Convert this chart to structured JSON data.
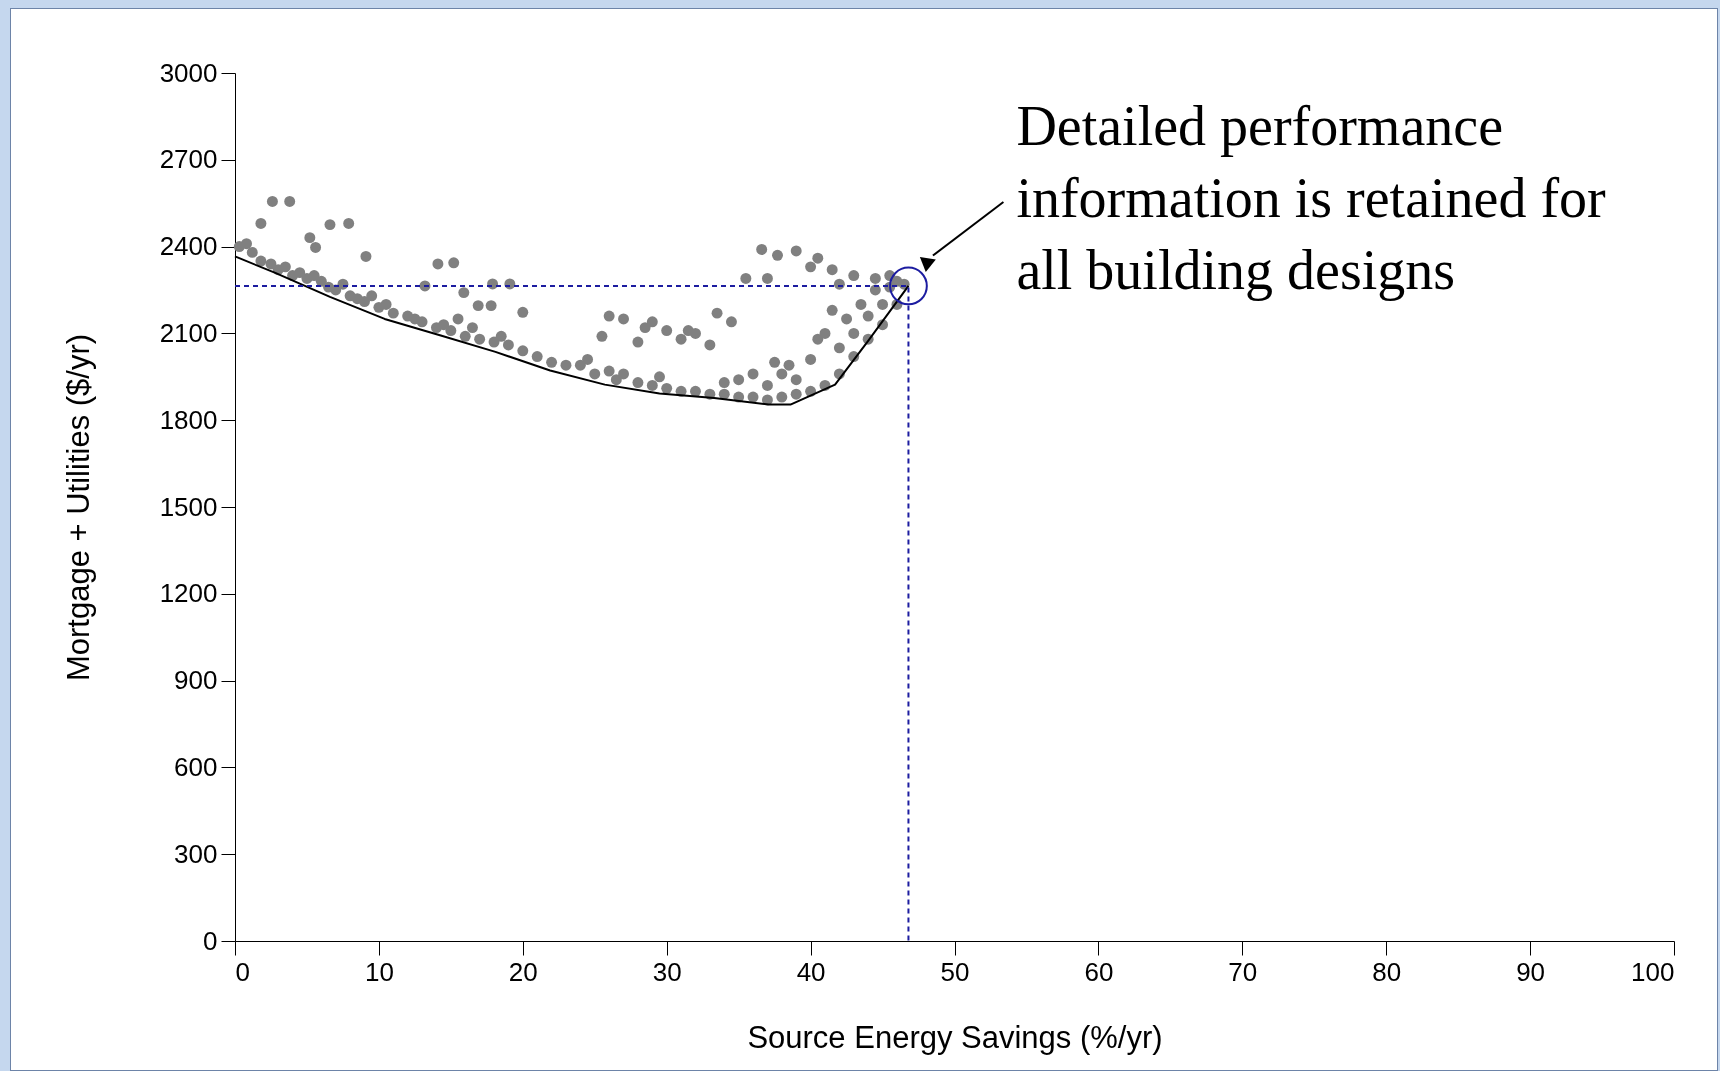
{
  "chart_data": {
    "type": "scatter",
    "xlabel": "Source Energy Savings (%/yr)",
    "ylabel": "Mortgage + Utilities ($/yr)",
    "xlim": [
      0,
      100
    ],
    "xticks": [
      0,
      10,
      20,
      30,
      40,
      50,
      60,
      70,
      80,
      90,
      100
    ],
    "ylim": [
      0,
      3000
    ],
    "yticks": [
      0,
      300,
      600,
      900,
      1200,
      1500,
      1800,
      2100,
      2400,
      2700,
      3000
    ],
    "grid": false,
    "annotations": [
      {
        "text": "Detailed performance\ninformation is retained for\nall building designs",
        "x": 46.8,
        "y": 2264
      }
    ],
    "series": [
      {
        "color": "#808080",
        "marker": "circle",
        "x": [
          0.3,
          0.8,
          1.2,
          1.8,
          2.5,
          3,
          3.5,
          4,
          4.5,
          5,
          5.5,
          6,
          6.5,
          7,
          7.5,
          8,
          8.5,
          9,
          9.5,
          10,
          10.5,
          11,
          12,
          12.5,
          13,
          14,
          14.5,
          15,
          15.5,
          16,
          16.5,
          17,
          18,
          18.5,
          19,
          20,
          21,
          22,
          23,
          24,
          24.5,
          25,
          26,
          26.5,
          27,
          28,
          29,
          29.5,
          30,
          31,
          32,
          33,
          34,
          34,
          35,
          35,
          36,
          36,
          37,
          37,
          37.5,
          38,
          38,
          38.5,
          39,
          39,
          40,
          40,
          40.5,
          41,
          41,
          41.5,
          42,
          42,
          42.5,
          43,
          43,
          43.5,
          44,
          44,
          44.5,
          45,
          45,
          45.5,
          46,
          46,
          46.5,
          25.5,
          26,
          27,
          28,
          28.5,
          29,
          30,
          31,
          31.5,
          32,
          33,
          33.5,
          34.5,
          35.5,
          36.6,
          37,
          37.7,
          39,
          40,
          40.5,
          41.5,
          42,
          43,
          44.5,
          45.5,
          2.6,
          3.8,
          1.8,
          5.2,
          5.6,
          6.6,
          7.9,
          9.1,
          14.1,
          15.2,
          17.9,
          19.1,
          20,
          13.2,
          15.9,
          16.9,
          17.8
        ],
        "values": [
          2400,
          2410,
          2380,
          2350,
          2340,
          2320,
          2330,
          2300,
          2310,
          2290,
          2300,
          2280,
          2260,
          2250,
          2270,
          2230,
          2220,
          2210,
          2230,
          2190,
          2200,
          2170,
          2160,
          2150,
          2140,
          2120,
          2130,
          2110,
          2150,
          2090,
          2120,
          2080,
          2070,
          2090,
          2060,
          2040,
          2020,
          2000,
          1990,
          1990,
          2010,
          1960,
          1970,
          1940,
          1960,
          1930,
          1920,
          1950,
          1910,
          1900,
          1900,
          1890,
          1890,
          1930,
          1880,
          1940,
          1880,
          1960,
          1870,
          1920,
          2000,
          1880,
          1960,
          1990,
          1890,
          1940,
          1900,
          2010,
          2080,
          1920,
          2100,
          2180,
          1960,
          2050,
          2150,
          2020,
          2100,
          2200,
          2080,
          2160,
          2250,
          2130,
          2200,
          2260,
          2200,
          2280,
          2270,
          2090,
          2160,
          2150,
          2070,
          2120,
          2140,
          2110,
          2080,
          2110,
          2100,
          2060,
          2170,
          2140,
          2290,
          2390,
          2290,
          2370,
          2385,
          2330,
          2360,
          2320,
          2270,
          2300,
          2290,
          2300,
          2556,
          2556,
          2480,
          2431,
          2397,
          2476,
          2480,
          2366,
          2340,
          2344,
          2271,
          2271,
          2173,
          2264,
          2241,
          2196,
          2196
        ]
      },
      {
        "type": "line",
        "color": "#000000",
        "line_style": "solid",
        "marker": "none",
        "x": [
          0,
          2.8,
          6.6,
          10.4,
          14.3,
          18.1,
          21.9,
          25.7,
          29.5,
          33.3,
          37.1,
          38.6,
          41.7,
          44,
          46.8
        ],
        "values": [
          2366,
          2309,
          2226,
          2150,
          2093,
          2036,
          1972,
          1923,
          1892,
          1877,
          1854,
          1854,
          1923,
          2074,
          2264
        ]
      },
      {
        "type": "line",
        "color": "#1c1ca0",
        "line_style": "dashed",
        "marker": "none",
        "x": [
          0,
          46.8,
          46.8
        ],
        "values": [
          2264,
          2264,
          0
        ]
      }
    ]
  }
}
